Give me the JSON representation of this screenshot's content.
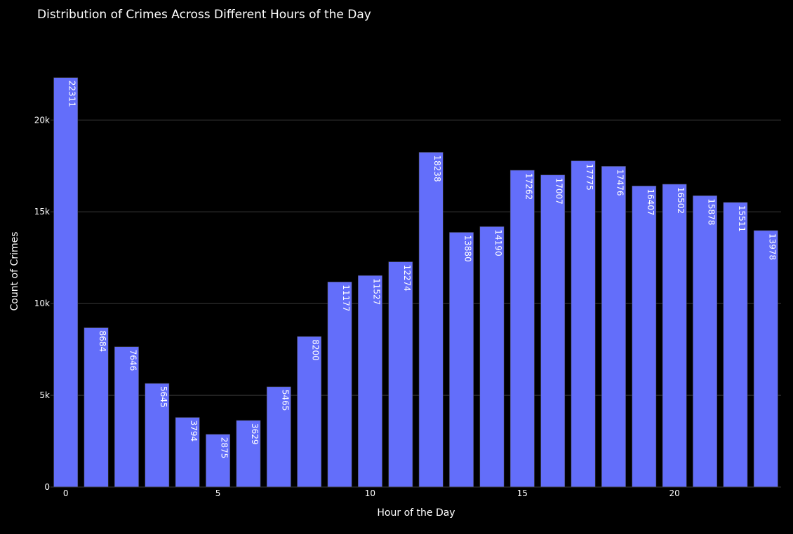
{
  "chart_data": {
    "type": "bar",
    "title": "Distribution of Crimes Across Different Hours of the Day",
    "xlabel": "Hour of the Day",
    "ylabel": "Count of Crimes",
    "categories": [
      0,
      1,
      2,
      3,
      4,
      5,
      6,
      7,
      8,
      9,
      10,
      11,
      12,
      13,
      14,
      15,
      16,
      17,
      18,
      19,
      20,
      21,
      22,
      23
    ],
    "values": [
      22311,
      8684,
      7646,
      5645,
      3794,
      2875,
      3629,
      5465,
      8200,
      11177,
      11527,
      12274,
      18238,
      13880,
      14190,
      17262,
      17007,
      17775,
      17476,
      16407,
      16502,
      15878,
      15511,
      13978
    ],
    "x_ticks": [
      {
        "value": 0,
        "label": "0"
      },
      {
        "value": 5,
        "label": "5"
      },
      {
        "value": 10,
        "label": "10"
      },
      {
        "value": 15,
        "label": "15"
      },
      {
        "value": 20,
        "label": "20"
      }
    ],
    "y_ticks": [
      {
        "value": 0,
        "label": "0"
      },
      {
        "value": 5000,
        "label": "5k"
      },
      {
        "value": 10000,
        "label": "10k"
      },
      {
        "value": 15000,
        "label": "15k"
      },
      {
        "value": 20000,
        "label": "20k"
      }
    ],
    "ylim": [
      0,
      23485
    ],
    "grid": true,
    "data_labels": true,
    "colors": {
      "background": "#000000",
      "bar": "#636efa",
      "bar_outline": "#444444",
      "grid": "#3a3a3a",
      "text": "#ffffff"
    }
  }
}
